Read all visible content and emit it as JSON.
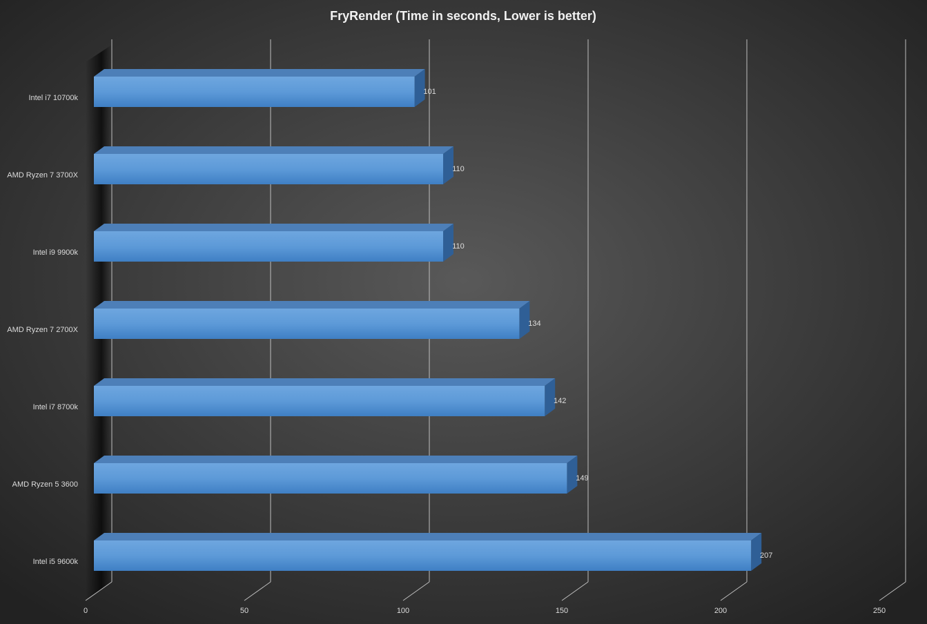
{
  "chart_data": {
    "type": "bar",
    "orientation": "horizontal",
    "title": "FryRender  (Time  in  seconds,  Lower  is  better)",
    "categories": [
      "Intel i7 10700k",
      "AMD Ryzen 7 3700X",
      "Intel i9 9900k",
      "AMD Ryzen 7 2700X",
      "Intel i7 8700k",
      "AMD Ryzen 5 3600",
      "Intel i5 9600k"
    ],
    "values": [
      101,
      110,
      110,
      134,
      142,
      149,
      207
    ],
    "color": "#5b9bd5",
    "xlim": [
      0,
      250
    ],
    "xticks": [
      0,
      50,
      100,
      150,
      200,
      250
    ],
    "grid": true
  }
}
